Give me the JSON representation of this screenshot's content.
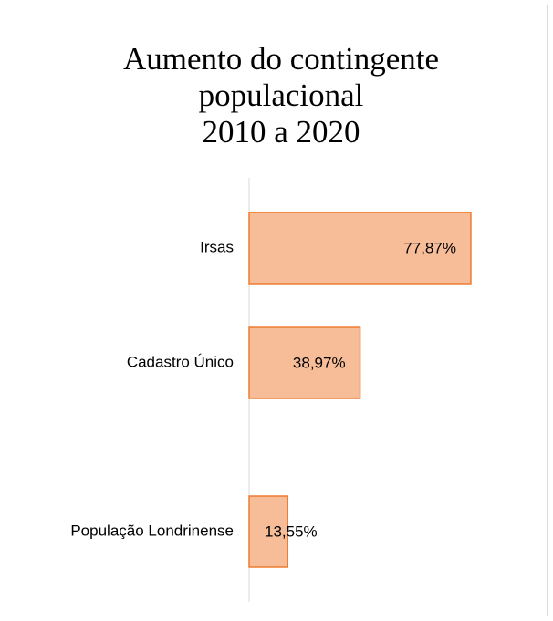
{
  "chart_data": {
    "type": "bar",
    "orientation": "horizontal",
    "title": [
      "Aumento do contingente",
      "populacional",
      "2010 a 2020"
    ],
    "categories": [
      "Irsas",
      "Cadastro Único",
      "População Londrinense"
    ],
    "values": [
      77.87,
      38.97,
      13.55
    ],
    "value_labels": [
      "77,87%",
      "38,97%",
      "13,55%"
    ],
    "color": "#f7bc98",
    "edge_color": "#ed7d31"
  }
}
